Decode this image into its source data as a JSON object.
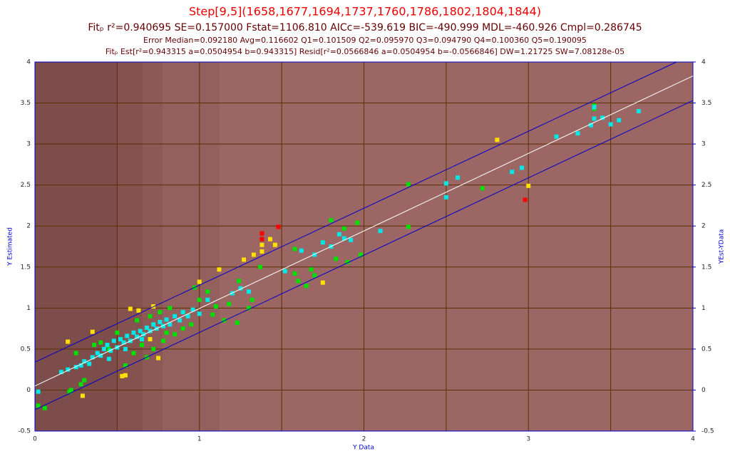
{
  "chart_data": {
    "type": "scatter",
    "title": "Step[9,5](1658,1677,1694,1737,1760,1786,1802,1804,1844)",
    "subtitles": [
      "Fitₚ r²=0.940695 SE=0.157000 Fstat=1106.810 AICc=-539.619 BIC=-490.999 MDL=-460.926 Cmpl=0.286745",
      "Error Median=0.092180 Avg=0.116602 Q1=0.101509 Q2=0.095970 Q3=0.094790 Q4=0.100360 Q5=0.190095",
      "Fitₚ Est[r²=0.943315 a=0.0504954 b=0.943315] Resid[r²=0.0566846 a=0.0504954 b=-0.0566846] DW=1.21725 SW=7.08128e-05"
    ],
    "x_label": "Y Data",
    "y_label": "Y Estimated",
    "y2_label": "YEst-YData",
    "xlim": [
      0,
      4
    ],
    "ylim": [
      -0.5,
      4
    ],
    "y2lim": [
      -0.5,
      4
    ],
    "xticks": [
      0,
      1,
      2,
      3,
      4
    ],
    "xgrid_extra": [
      0.5,
      1.5,
      2.5,
      3.5
    ],
    "yticks": [
      -0.5,
      0,
      0.5,
      1,
      1.5,
      2,
      2.5,
      3,
      3.5,
      4
    ],
    "y2ticks": [
      -0.5,
      0,
      0.5,
      1,
      1.5,
      2,
      2.5,
      3,
      3.5,
      4
    ],
    "grid": true,
    "series": [
      {
        "mode": "points",
        "color": "#00e000",
        "x": [
          0.02,
          0.06,
          0.21,
          0.22,
          0.25,
          0.28,
          0.3,
          0.36,
          0.4,
          0.45,
          0.5,
          0.55,
          0.6,
          0.62,
          0.65,
          0.68,
          0.7,
          0.72,
          0.76,
          0.78,
          0.8,
          0.82,
          0.85,
          0.9,
          0.95,
          0.97,
          1.0,
          1.05,
          1.08,
          1.1,
          1.15,
          1.18,
          1.23,
          1.24,
          1.3,
          1.32,
          1.37,
          1.58,
          1.58,
          1.6,
          1.65,
          1.68,
          1.7,
          1.8,
          1.83,
          1.88,
          1.9,
          1.96,
          1.98,
          2.27,
          2.27,
          2.72,
          3.4,
          3.4
        ],
        "values": [
          -0.19,
          -0.22,
          -0.02,
          0.0,
          0.45,
          0.07,
          0.12,
          0.55,
          0.58,
          0.5,
          0.7,
          0.3,
          0.45,
          0.85,
          0.55,
          0.4,
          0.9,
          0.5,
          0.95,
          0.6,
          0.7,
          1.0,
          0.68,
          0.75,
          0.8,
          1.25,
          1.1,
          1.2,
          0.92,
          1.02,
          0.85,
          1.05,
          0.82,
          1.33,
          1.0,
          1.1,
          1.5,
          1.72,
          1.42,
          1.33,
          1.27,
          1.47,
          1.4,
          2.07,
          1.6,
          1.97,
          1.56,
          2.04,
          1.65,
          2.51,
          1.99,
          2.46,
          3.47,
          3.43
        ]
      },
      {
        "mode": "points",
        "color": "#00e8e8",
        "x": [
          0.02,
          0.16,
          0.2,
          0.25,
          0.28,
          0.3,
          0.33,
          0.35,
          0.38,
          0.4,
          0.42,
          0.44,
          0.46,
          0.48,
          0.5,
          0.52,
          0.54,
          0.56,
          0.58,
          0.6,
          0.62,
          0.64,
          0.66,
          0.68,
          0.7,
          0.72,
          0.74,
          0.76,
          0.78,
          0.8,
          0.82,
          0.85,
          0.88,
          0.9,
          0.93,
          0.96,
          1.0,
          1.05,
          1.2,
          1.25,
          1.3,
          1.52,
          1.62,
          1.7,
          1.75,
          1.8,
          1.85,
          1.88,
          1.92,
          2.1,
          2.5,
          2.5,
          2.57,
          2.9,
          2.96,
          3.17,
          3.3,
          3.4,
          3.45,
          3.5,
          3.55,
          3.67,
          3.38,
          3.4,
          0.45,
          0.55,
          0.65
        ],
        "values": [
          -0.02,
          0.22,
          0.25,
          0.28,
          0.3,
          0.35,
          0.32,
          0.4,
          0.45,
          0.42,
          0.5,
          0.55,
          0.48,
          0.6,
          0.52,
          0.62,
          0.58,
          0.66,
          0.6,
          0.7,
          0.65,
          0.72,
          0.68,
          0.76,
          0.72,
          0.8,
          0.75,
          0.83,
          0.78,
          0.86,
          0.8,
          0.9,
          0.85,
          0.95,
          0.9,
          0.98,
          0.93,
          1.1,
          1.18,
          1.24,
          1.2,
          1.45,
          1.7,
          1.65,
          1.8,
          1.75,
          1.9,
          1.85,
          1.83,
          1.94,
          2.52,
          2.35,
          2.59,
          2.66,
          2.71,
          3.09,
          3.13,
          3.31,
          3.32,
          3.24,
          3.29,
          3.4,
          3.23,
          3.45,
          0.38,
          0.5,
          0.62
        ]
      },
      {
        "mode": "points",
        "color": "#ffe000",
        "x": [
          0.2,
          0.29,
          0.35,
          0.53,
          0.55,
          0.58,
          0.63,
          0.72,
          0.75,
          0.7,
          1.0,
          1.12,
          1.27,
          1.33,
          1.38,
          1.38,
          1.43,
          1.46,
          1.75,
          2.81,
          3.0
        ],
        "values": [
          0.59,
          -0.07,
          0.71,
          0.17,
          0.18,
          0.99,
          0.97,
          1.02,
          0.39,
          0.62,
          1.32,
          1.47,
          1.59,
          1.65,
          1.77,
          1.69,
          1.84,
          1.77,
          1.31,
          3.05,
          2.49
        ]
      },
      {
        "mode": "points",
        "color": "#ff0000",
        "x": [
          1.38,
          1.38,
          1.48,
          2.98
        ],
        "values": [
          1.91,
          1.84,
          1.99,
          2.32
        ]
      },
      {
        "mode": "line",
        "color": "#ffffff",
        "x": [
          0,
          4
        ],
        "values": [
          0.05,
          3.83
        ]
      },
      {
        "mode": "line",
        "color": "#0000cc",
        "x": [
          0,
          3.9
        ],
        "values": [
          0.34,
          4.0
        ]
      },
      {
        "mode": "line",
        "color": "#0000cc",
        "x": [
          0,
          4
        ],
        "values": [
          -0.24,
          3.53
        ]
      }
    ]
  }
}
